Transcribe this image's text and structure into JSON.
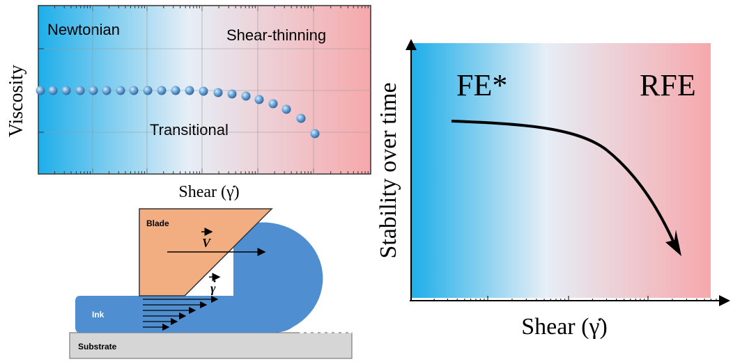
{
  "viscosity_plot": {
    "y_label": "Viscosity",
    "x_label": "Shear (γ̇)",
    "regions": [
      "Newtonian",
      "Shear-thinning",
      "Transitional"
    ]
  },
  "schematic": {
    "blade": "Blade",
    "velocity": "V",
    "shear_rate": "γ",
    "ink": "Ink",
    "substrate": "Substrate"
  },
  "stability_plot": {
    "y_label": "Stability over time",
    "x_label": "Shear (γ̇)",
    "regions": [
      "FE*",
      "RFE"
    ]
  }
}
